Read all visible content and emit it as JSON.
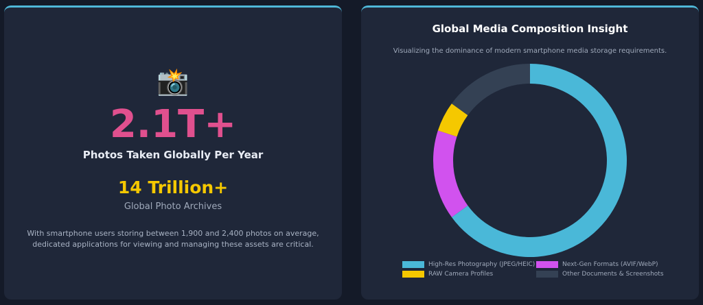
{
  "stats_card": {
    "icon": "📸",
    "headline_value": "2.1T+",
    "headline_label": "Photos Taken Globally Per Year",
    "secondary_value": "14 Trillion+",
    "secondary_label": "Global Photo Archives",
    "description": "With smartphone users storing between 1,900 and 2,400 photos on average, dedicated applications for viewing and managing these assets are critical."
  },
  "chart_data": {
    "type": "doughnut",
    "title": "Global Media Composition Insight",
    "subtitle": "Visualizing the dominance of modern smartphone media storage requirements.",
    "categories": [
      "High-Res Photography (JPEG/HEIC)",
      "Next-Gen Formats (AVIF/WebP)",
      "RAW Camera Profiles",
      "Other Documents & Screenshots"
    ],
    "values": [
      65,
      15,
      5,
      15
    ],
    "colors": [
      "#4ab8d8",
      "#d152ee",
      "#f5c800",
      "#344154"
    ]
  }
}
